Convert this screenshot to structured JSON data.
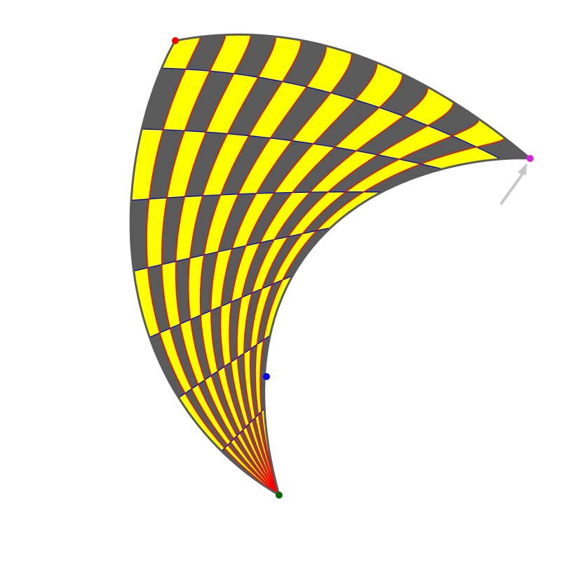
{
  "patch": {
    "grid_rows": 8,
    "grid_cols": 14,
    "fill_color_a": "#ffff00",
    "fill_color_b": "#5a5a5a",
    "row_line_color": "#0000cc",
    "col_line_color": "#ff0000",
    "outline_color": "#5a5a5a"
  },
  "control_points": [
    {
      "name": "red",
      "color": "#ff0000"
    },
    {
      "name": "magenta",
      "color": "#e020e0"
    },
    {
      "name": "blue",
      "color": "#0000ff"
    },
    {
      "name": "green",
      "color": "#006600"
    }
  ],
  "drag_hint": {
    "icon": "arrow-icon",
    "color": "#c8c8c8"
  }
}
